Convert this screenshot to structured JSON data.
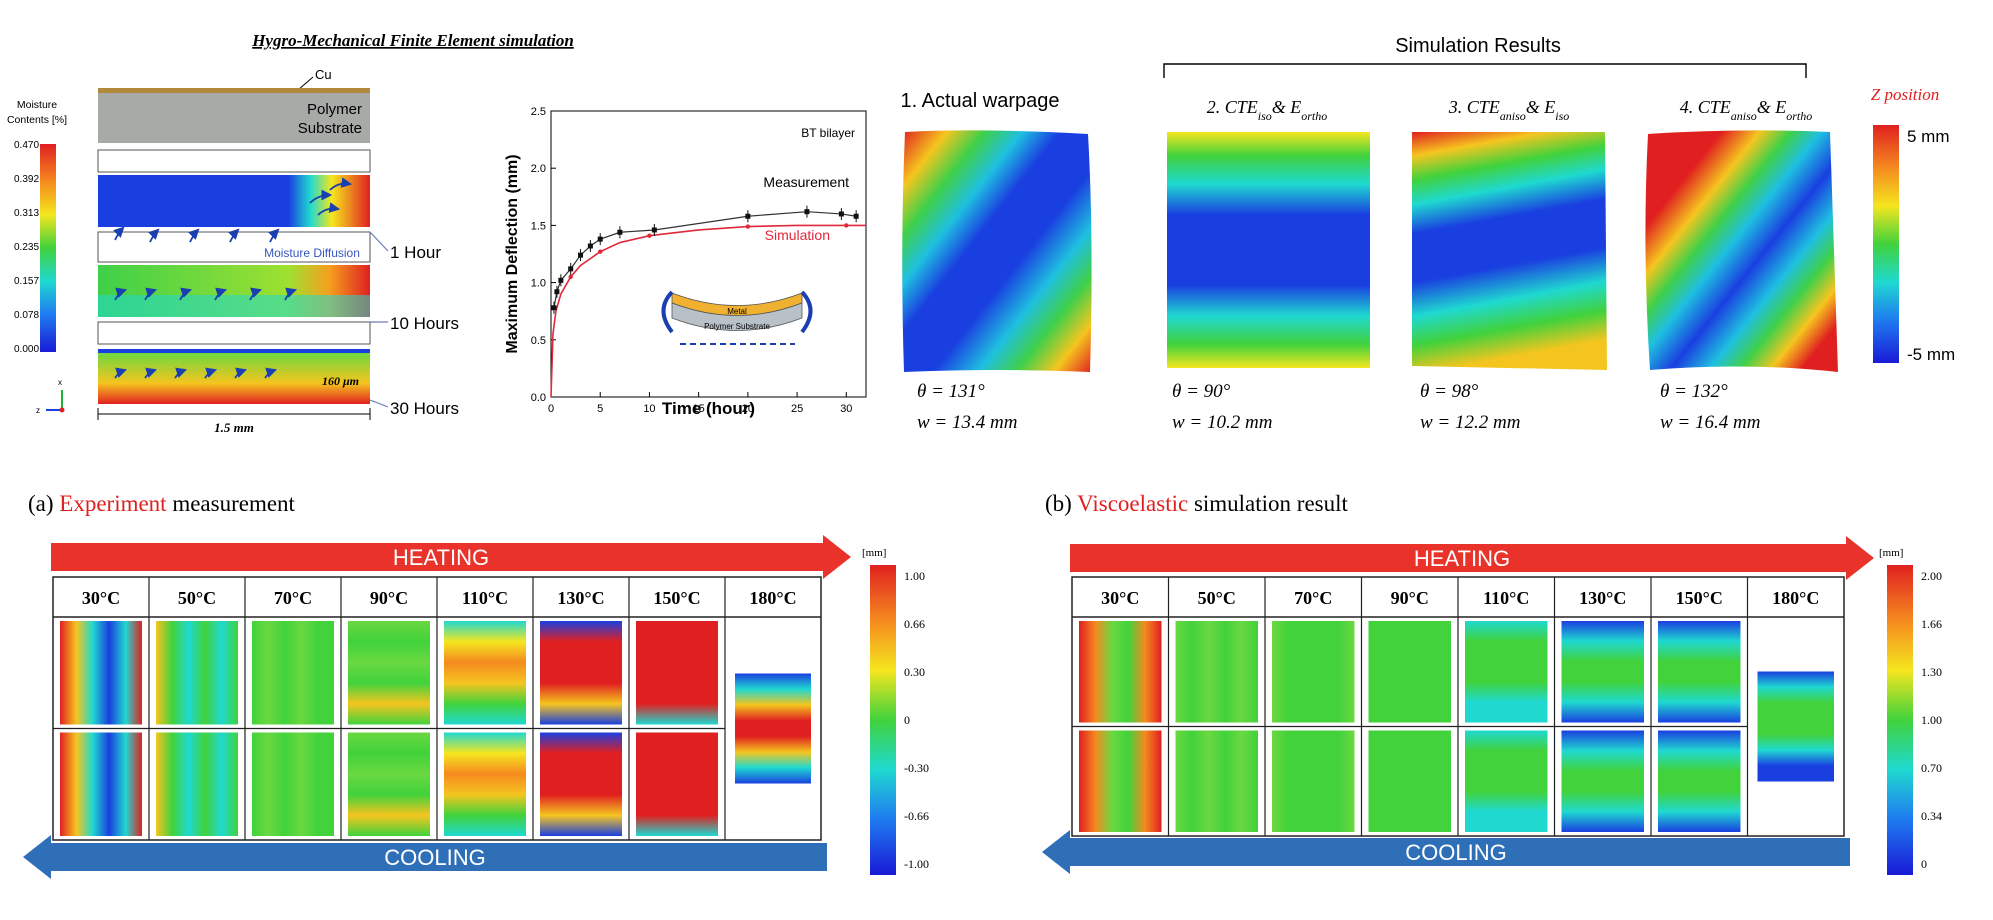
{
  "hygro": {
    "title": "Hygro-Mechanical Finite Element simulation",
    "cu_label": "Cu",
    "substrate_label": "Polymer\nSubstrate",
    "legend_title": "Moisture\nContents [%]",
    "legend_ticks": [
      "0.470",
      "0.392",
      "0.313",
      "0.235",
      "0.157",
      "0.078",
      "0.000"
    ],
    "arrow_label": "Moisture Diffusion",
    "times": [
      "1 Hour",
      "10 Hours",
      "30 Hours"
    ],
    "thickness_label": "160 μm",
    "width_label": "1.5 mm",
    "axis_x": "z",
    "axis_y": "x"
  },
  "chart_data": {
    "type": "line",
    "xlabel": "Time (hour)",
    "ylabel": "Maximum Deflection (mm)",
    "xlim": [
      0,
      32
    ],
    "ylim": [
      0,
      2.5
    ],
    "xticks": [
      0,
      5,
      10,
      15,
      20,
      25,
      30
    ],
    "yticks": [
      0.0,
      0.5,
      1.0,
      1.5,
      2.0,
      2.5
    ],
    "annotation": "BT bilayer",
    "inset_labels": [
      "Metal",
      "Polymer Substrate"
    ],
    "series": [
      {
        "name": "Measurement",
        "color": "#111111",
        "x": [
          0.3,
          0.6,
          1,
          2,
          3,
          4,
          5,
          7,
          10.5,
          20,
          26,
          29.5,
          31
        ],
        "y": [
          0.78,
          0.92,
          1.02,
          1.12,
          1.24,
          1.32,
          1.38,
          1.44,
          1.46,
          1.58,
          1.62,
          1.6,
          1.58
        ]
      },
      {
        "name": "Simulation",
        "color": "#e0283a",
        "x": [
          0,
          0.2,
          0.5,
          1,
          2,
          3,
          5,
          7,
          10,
          15,
          20,
          25,
          30,
          32
        ],
        "y": [
          0,
          0.55,
          0.75,
          0.9,
          1.05,
          1.15,
          1.27,
          1.35,
          1.41,
          1.46,
          1.49,
          1.5,
          1.5,
          1.5
        ]
      }
    ]
  },
  "sim_results": {
    "header": "Simulation Results",
    "panels": [
      {
        "label": "1. Actual warpage",
        "theta": "θ = 131°",
        "w": "w = 13.4 mm"
      },
      {
        "label": "2. CTE_iso & E_ortho",
        "base1": "2. CTE",
        "sub1": "iso",
        "mid": "& E",
        "sub2": "ortho",
        "theta": "θ = 90°",
        "w": "w = 10.2 mm"
      },
      {
        "label": "3. CTE_aniso & E_iso",
        "base1": "3. CTE",
        "sub1": "aniso",
        "mid": "& E",
        "sub2": "iso",
        "theta": "θ = 98°",
        "w": "w = 12.2 mm"
      },
      {
        "label": "4. CTE_aniso & E_ortho",
        "base1": "4. CTE",
        "sub1": "aniso",
        "mid": "& E",
        "sub2": "ortho",
        "theta": "θ = 132°",
        "w": "w = 16.4 mm"
      }
    ],
    "scale_title": "Z position",
    "scale_max": "5 mm",
    "scale_min": "-5 mm"
  },
  "experiment": {
    "prefix": "(a) ",
    "highlight": "Experiment",
    "suffix": " measurement",
    "heating": "HEATING",
    "cooling": "COOLING",
    "temps": [
      "30°C",
      "50°C",
      "70°C",
      "90°C",
      "110°C",
      "130°C",
      "150°C",
      "180°C"
    ],
    "unit": "[mm]",
    "ticks": [
      "1.00",
      "0.66",
      "0.30",
      "0",
      "-0.30",
      "-0.66",
      "-1.00"
    ]
  },
  "viscoelastic": {
    "prefix": "(b) ",
    "highlight": "Viscoelastic",
    "suffix": " simulation result",
    "heating": "HEATING",
    "cooling": "COOLING",
    "temps": [
      "30°C",
      "50°C",
      "70°C",
      "90°C",
      "110°C",
      "130°C",
      "150°C",
      "180°C"
    ],
    "unit": "[mm]",
    "ticks": [
      "2.00",
      "1.66",
      "1.30",
      "1.00",
      "0.70",
      "0.34",
      "0"
    ]
  },
  "colors": {
    "accent_red": "#e8322a",
    "accent_blue": "#2f6fb8",
    "highlight_text": "#e02020"
  }
}
